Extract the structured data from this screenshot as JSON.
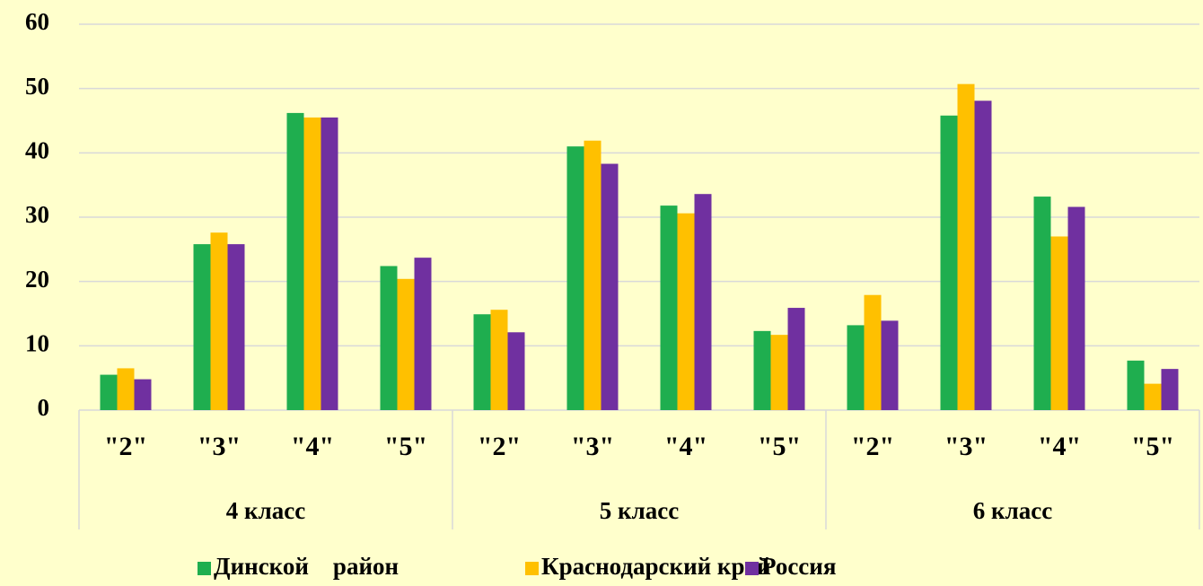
{
  "chart_data": {
    "type": "bar",
    "categories": [
      "\"2\"",
      "\"3\"",
      "\"4\"",
      "\"5\"",
      "\"2\"",
      "\"3\"",
      "\"4\"",
      "\"5\"",
      "\"2\"",
      "\"3\"",
      "\"4\"",
      "\"5\""
    ],
    "groups": [
      "4 класс",
      "5 класс",
      "6 класс"
    ],
    "series": [
      {
        "name": "Динской    район",
        "color": "#1fae4f",
        "values": [
          5.5,
          25.8,
          46.2,
          22.4,
          14.9,
          41.0,
          31.8,
          12.3,
          13.2,
          45.8,
          33.2,
          7.7
        ]
      },
      {
        "name": "Краснодарский край",
        "color": "#ffc000",
        "values": [
          6.5,
          27.6,
          45.5,
          20.4,
          15.6,
          41.9,
          30.6,
          11.7,
          17.9,
          50.7,
          27.0,
          4.1
        ]
      },
      {
        "name": "Россия",
        "color": "#7030a0",
        "values": [
          4.8,
          25.8,
          45.5,
          23.7,
          12.1,
          38.3,
          33.6,
          15.9,
          13.9,
          48.1,
          31.6,
          6.4
        ]
      }
    ],
    "ylim": [
      0,
      60
    ],
    "yticks": [
      0,
      10,
      20,
      30,
      40,
      50,
      60
    ],
    "grid": true,
    "legend": "bottom"
  }
}
